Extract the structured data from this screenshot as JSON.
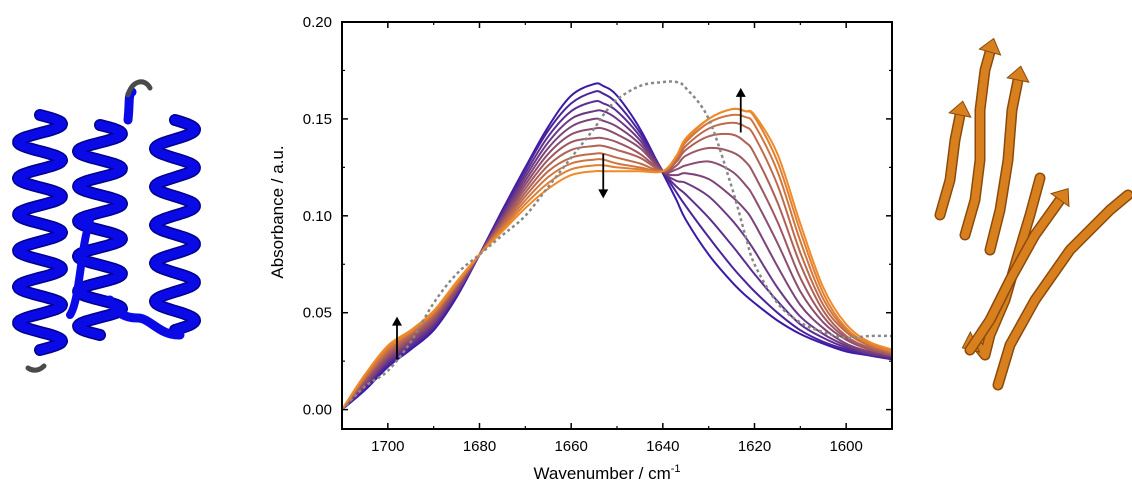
{
  "chart_data": {
    "type": "line",
    "title": "",
    "xlabel": "Wavenumber / cm",
    "xlabel_superscript": "-1",
    "ylabel": "Absorbance / a.u.",
    "xlim": [
      1710,
      1590
    ],
    "ylim": [
      -0.01,
      0.2
    ],
    "x_reversed": true,
    "x_ticks": [
      1700,
      1680,
      1660,
      1640,
      1620,
      1600
    ],
    "x_tick_labels": [
      "1700",
      "1680",
      "1660",
      "1640",
      "1620",
      "1600"
    ],
    "y_ticks": [
      0.0,
      0.05,
      0.1,
      0.15,
      0.2
    ],
    "y_tick_labels": [
      "0.00",
      "0.05",
      "0.10",
      "0.15",
      "0.20"
    ],
    "grid": false,
    "legend": "none",
    "color_gradient": [
      "#3b1aa8",
      "#f08a28"
    ],
    "dashed_color": "#888888",
    "x": [
      1710,
      1705,
      1700,
      1695,
      1690,
      1685,
      1680,
      1675,
      1670,
      1665,
      1660,
      1655,
      1653,
      1650,
      1645,
      1640,
      1637,
      1635,
      1630,
      1625,
      1622,
      1620,
      1615,
      1610,
      1605,
      1600,
      1595,
      1590
    ],
    "series": [
      {
        "values": [
          0.0,
          0.01,
          0.022,
          0.031,
          0.041,
          0.058,
          0.08,
          0.103,
          0.125,
          0.146,
          0.162,
          0.168,
          0.167,
          0.162,
          0.145,
          0.122,
          0.108,
          0.098,
          0.08,
          0.066,
          0.059,
          0.055,
          0.046,
          0.039,
          0.034,
          0.03,
          0.028,
          0.026
        ]
      },
      {
        "values": [
          0.0,
          0.011,
          0.023,
          0.032,
          0.042,
          0.059,
          0.08,
          0.102,
          0.124,
          0.144,
          0.158,
          0.164,
          0.163,
          0.158,
          0.143,
          0.123,
          0.112,
          0.105,
          0.089,
          0.074,
          0.066,
          0.061,
          0.05,
          0.041,
          0.035,
          0.031,
          0.028,
          0.026
        ]
      },
      {
        "values": [
          0.0,
          0.012,
          0.024,
          0.033,
          0.043,
          0.06,
          0.08,
          0.101,
          0.122,
          0.141,
          0.154,
          0.159,
          0.158,
          0.154,
          0.141,
          0.123,
          0.115,
          0.111,
          0.099,
          0.085,
          0.076,
          0.07,
          0.056,
          0.044,
          0.037,
          0.032,
          0.029,
          0.027
        ]
      },
      {
        "values": [
          0.0,
          0.012,
          0.025,
          0.034,
          0.044,
          0.06,
          0.08,
          0.1,
          0.12,
          0.138,
          0.15,
          0.154,
          0.154,
          0.15,
          0.139,
          0.123,
          0.118,
          0.117,
          0.11,
          0.098,
          0.089,
          0.082,
          0.063,
          0.048,
          0.039,
          0.033,
          0.029,
          0.027
        ]
      },
      {
        "values": [
          0.0,
          0.013,
          0.026,
          0.035,
          0.045,
          0.061,
          0.08,
          0.099,
          0.118,
          0.135,
          0.146,
          0.15,
          0.149,
          0.146,
          0.137,
          0.123,
          0.121,
          0.122,
          0.119,
          0.11,
          0.103,
          0.096,
          0.074,
          0.054,
          0.042,
          0.034,
          0.03,
          0.028
        ]
      },
      {
        "values": [
          0.0,
          0.014,
          0.027,
          0.036,
          0.046,
          0.062,
          0.08,
          0.098,
          0.116,
          0.132,
          0.142,
          0.145,
          0.145,
          0.142,
          0.135,
          0.123,
          0.124,
          0.126,
          0.128,
          0.123,
          0.116,
          0.109,
          0.086,
          0.061,
          0.045,
          0.036,
          0.031,
          0.028
        ]
      },
      {
        "values": [
          0.0,
          0.015,
          0.028,
          0.037,
          0.047,
          0.063,
          0.08,
          0.097,
          0.114,
          0.129,
          0.138,
          0.14,
          0.14,
          0.138,
          0.132,
          0.123,
          0.126,
          0.131,
          0.135,
          0.133,
          0.128,
          0.121,
          0.097,
          0.068,
          0.048,
          0.037,
          0.031,
          0.028
        ]
      },
      {
        "values": [
          0.0,
          0.016,
          0.029,
          0.038,
          0.048,
          0.064,
          0.08,
          0.096,
          0.112,
          0.126,
          0.134,
          0.136,
          0.136,
          0.134,
          0.13,
          0.123,
          0.128,
          0.134,
          0.141,
          0.142,
          0.138,
          0.132,
          0.107,
          0.075,
          0.051,
          0.038,
          0.032,
          0.029
        ]
      },
      {
        "values": [
          0.0,
          0.016,
          0.03,
          0.039,
          0.049,
          0.064,
          0.08,
          0.095,
          0.11,
          0.123,
          0.13,
          0.132,
          0.132,
          0.13,
          0.127,
          0.123,
          0.129,
          0.136,
          0.145,
          0.148,
          0.146,
          0.141,
          0.116,
          0.081,
          0.054,
          0.04,
          0.033,
          0.029
        ]
      },
      {
        "values": [
          0.0,
          0.017,
          0.031,
          0.04,
          0.05,
          0.065,
          0.08,
          0.094,
          0.108,
          0.12,
          0.127,
          0.129,
          0.129,
          0.127,
          0.125,
          0.123,
          0.13,
          0.138,
          0.148,
          0.152,
          0.151,
          0.147,
          0.123,
          0.087,
          0.057,
          0.041,
          0.034,
          0.03
        ]
      },
      {
        "values": [
          0.0,
          0.018,
          0.032,
          0.04,
          0.05,
          0.065,
          0.08,
          0.093,
          0.106,
          0.117,
          0.124,
          0.126,
          0.126,
          0.125,
          0.124,
          0.123,
          0.131,
          0.139,
          0.15,
          0.155,
          0.154,
          0.151,
          0.128,
          0.092,
          0.06,
          0.042,
          0.034,
          0.03
        ]
      },
      {
        "values": [
          0.0,
          0.018,
          0.033,
          0.041,
          0.051,
          0.066,
          0.08,
          0.092,
          0.104,
          0.114,
          0.121,
          0.123,
          0.123,
          0.123,
          0.123,
          0.123,
          0.131,
          0.14,
          0.15,
          0.155,
          0.154,
          0.152,
          0.132,
          0.096,
          0.063,
          0.044,
          0.035,
          0.031
        ]
      }
    ],
    "dashed_series": {
      "values": [
        0.0,
        0.012,
        0.02,
        0.035,
        0.055,
        0.07,
        0.08,
        0.09,
        0.1,
        0.115,
        0.13,
        0.145,
        0.152,
        0.16,
        0.167,
        0.169,
        0.169,
        0.166,
        0.15,
        0.115,
        0.09,
        0.075,
        0.055,
        0.045,
        0.04,
        0.037,
        0.038,
        0.038
      ]
    },
    "annotations": [
      {
        "type": "arrow",
        "direction": "up",
        "x": 1698,
        "y_from": 0.026,
        "y_to": 0.048
      },
      {
        "type": "arrow",
        "direction": "down",
        "x": 1653,
        "y_from": 0.132,
        "y_to": 0.109
      },
      {
        "type": "arrow",
        "direction": "up",
        "x": 1623,
        "y_from": 0.143,
        "y_to": 0.166
      }
    ]
  },
  "structures": {
    "left": {
      "name": "alpha-helix-bundle",
      "color": "#0a0ae6",
      "loop_color": "#4a4a4a"
    },
    "right": {
      "name": "beta-sheet-strands",
      "color": "#d8801e"
    }
  }
}
